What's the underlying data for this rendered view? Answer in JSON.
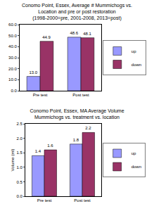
{
  "chart_data": [
    {
      "type": "bar",
      "title": "Conomo Point, Essex, Average # Mummichogs vs.\nLocation and pre or post restoration\n(1998-2000=pre, 2001-2008, 2013=post)",
      "categories": [
        "Pre test",
        "Post test"
      ],
      "series": [
        {
          "name": "up",
          "color": "#9999ff",
          "values": [
            13.0,
            48.6
          ],
          "value_labels": [
            "13.0",
            "48.6"
          ]
        },
        {
          "name": "down",
          "color": "#993366",
          "values": [
            44.9,
            48.1
          ],
          "value_labels": [
            "44.9",
            "48.1"
          ]
        }
      ],
      "ylim": [
        0,
        60
      ],
      "yticks": [
        {
          "value": 0,
          "label": "0.0"
        },
        {
          "value": 10,
          "label": "10.0"
        },
        {
          "value": 20,
          "label": "20.0"
        },
        {
          "value": 30,
          "label": "30.0"
        },
        {
          "value": 40,
          "label": "40.0"
        },
        {
          "value": 50,
          "label": "50.0"
        },
        {
          "value": 60,
          "label": "60.0"
        }
      ],
      "grid": false,
      "legend": "right",
      "data_labels": true
    },
    {
      "type": "bar",
      "title": "Conomo Point, Essex, MA Average Volume\nMummichogs vs. treatment vs. location",
      "y_label": "Volume (ml)",
      "categories": [
        "Pre test",
        "Post test"
      ],
      "series": [
        {
          "name": "up",
          "color": "#9999ff",
          "values": [
            1.4,
            1.8
          ],
          "value_labels": [
            "1.4",
            "1.8"
          ]
        },
        {
          "name": "down",
          "color": "#993366",
          "values": [
            1.6,
            2.2
          ],
          "value_labels": [
            "1.6",
            "2.2"
          ]
        }
      ],
      "ylim": [
        0,
        2.5
      ],
      "yticks": [
        {
          "value": 0,
          "label": "0.0"
        },
        {
          "value": 0.5,
          "label": "0.5"
        },
        {
          "value": 1,
          "label": "1.0"
        },
        {
          "value": 1.5,
          "label": "1.5"
        },
        {
          "value": 2,
          "label": "2.0"
        },
        {
          "value": 2.5,
          "label": "2.5"
        }
      ],
      "grid": false,
      "legend": "right",
      "data_labels": true
    }
  ]
}
